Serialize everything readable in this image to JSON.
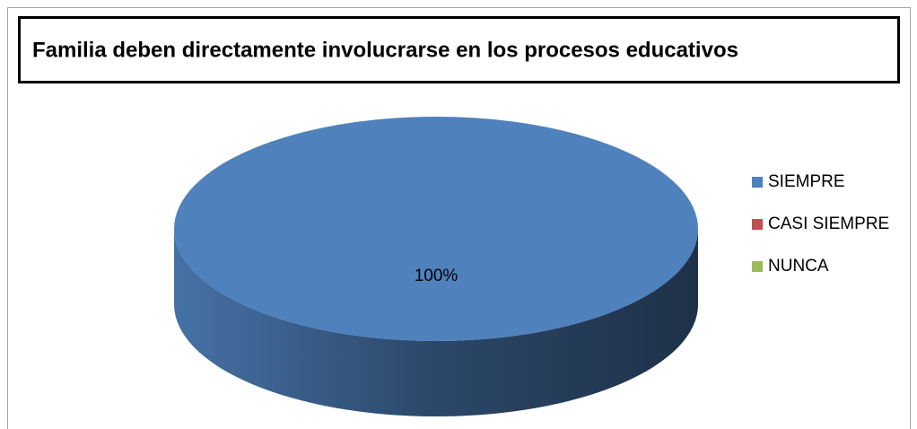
{
  "chart_data": {
    "type": "pie",
    "title": "Familia deben directamente involucrarse en los procesos educativos",
    "categories": [
      "SIEMPRE",
      "CASI SIEMPRE",
      "NUNCA"
    ],
    "values": [
      100,
      0,
      0
    ],
    "value_labels": [
      "100%",
      null,
      null
    ],
    "colors": [
      "#4f81bd",
      "#c0504d",
      "#9bbb59"
    ],
    "legend": "right"
  }
}
